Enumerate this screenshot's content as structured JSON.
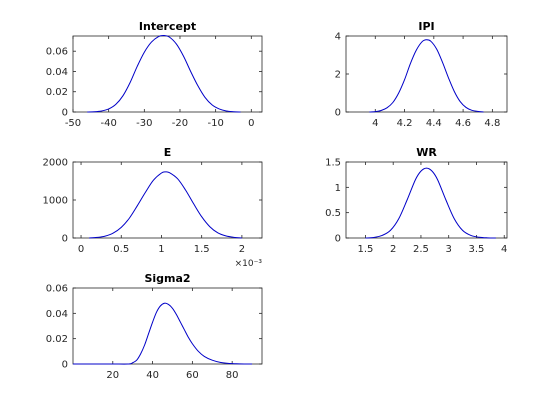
{
  "figure": {
    "background": "#ffffff",
    "axes_color": "#262626",
    "line_color": "#0000c8"
  },
  "chart_data": [
    {
      "type": "line",
      "id": "intercept",
      "title": "Intercept",
      "xlim": [
        -50,
        3
      ],
      "ylim": [
        0,
        0.075
      ],
      "x_ticks": [
        -50,
        -40,
        -30,
        -20,
        -10,
        0
      ],
      "x_tick_labels": [
        "-50",
        "-40",
        "-30",
        "-20",
        "-10",
        "0"
      ],
      "y_ticks": [
        0,
        0.02,
        0.04,
        0.06
      ],
      "y_tick_labels": [
        "0",
        "0.02",
        "0.04",
        "0.06"
      ],
      "x_exponent_label": "",
      "series": [
        {
          "color": "#0000c8",
          "x": [
            -46,
            -44,
            -42,
            -40,
            -38,
            -36,
            -34,
            -32,
            -30,
            -28,
            -26,
            -24.5,
            -23,
            -21,
            -19,
            -17,
            -15,
            -13,
            -11,
            -9,
            -7,
            -5,
            -3
          ],
          "y": [
            0,
            0.0002,
            0.001,
            0.003,
            0.0075,
            0.016,
            0.029,
            0.045,
            0.059,
            0.069,
            0.0745,
            0.0755,
            0.074,
            0.067,
            0.055,
            0.04,
            0.026,
            0.0145,
            0.007,
            0.003,
            0.001,
            0.0003,
            0
          ]
        }
      ]
    },
    {
      "type": "line",
      "id": "ipi",
      "title": "IPI",
      "xlim": [
        3.8,
        4.9
      ],
      "ylim": [
        0,
        4
      ],
      "x_ticks": [
        4,
        4.2,
        4.4,
        4.6,
        4.8
      ],
      "x_tick_labels": [
        "4",
        "4.2",
        "4.4",
        "4.6",
        "4.8"
      ],
      "y_ticks": [
        0,
        2,
        4
      ],
      "y_tick_labels": [
        "0",
        "2",
        "4"
      ],
      "x_exponent_label": "",
      "series": [
        {
          "color": "#0000c8",
          "x": [
            3.96,
            4.0,
            4.04,
            4.08,
            4.12,
            4.16,
            4.2,
            4.24,
            4.28,
            4.32,
            4.35,
            4.38,
            4.42,
            4.46,
            4.5,
            4.54,
            4.58,
            4.62,
            4.66,
            4.7,
            4.74
          ],
          "y": [
            0,
            0.02,
            0.08,
            0.22,
            0.5,
            1.0,
            1.7,
            2.55,
            3.25,
            3.7,
            3.8,
            3.72,
            3.3,
            2.6,
            1.8,
            1.08,
            0.55,
            0.24,
            0.09,
            0.03,
            0
          ]
        }
      ]
    },
    {
      "type": "line",
      "id": "e",
      "title": "E",
      "xlim": [
        -0.1,
        2.25
      ],
      "ylim": [
        0,
        2000
      ],
      "x_ticks": [
        0,
        0.5,
        1,
        1.5,
        2
      ],
      "x_tick_labels": [
        "0",
        "0.5",
        "1",
        "1.5",
        "2"
      ],
      "y_ticks": [
        0,
        1000,
        2000
      ],
      "y_tick_labels": [
        "0",
        "1000",
        "2000"
      ],
      "x_exponent_label": "×10⁻³",
      "series": [
        {
          "color": "#0000c8",
          "x": [
            0.1,
            0.2,
            0.3,
            0.4,
            0.5,
            0.6,
            0.7,
            0.8,
            0.9,
            1.0,
            1.05,
            1.1,
            1.2,
            1.3,
            1.4,
            1.5,
            1.6,
            1.7,
            1.8,
            1.9,
            2.0
          ],
          "y": [
            0,
            15,
            50,
            130,
            280,
            520,
            850,
            1200,
            1520,
            1710,
            1740,
            1720,
            1560,
            1260,
            900,
            560,
            300,
            135,
            55,
            18,
            0
          ]
        }
      ]
    },
    {
      "type": "line",
      "id": "wr",
      "title": "WR",
      "xlim": [
        1.15,
        4.05
      ],
      "ylim": [
        0,
        1.5
      ],
      "x_ticks": [
        1.5,
        2,
        2.5,
        3,
        3.5,
        4
      ],
      "x_tick_labels": [
        "1.5",
        "2",
        "2.5",
        "3",
        "3.5",
        "4"
      ],
      "y_ticks": [
        0,
        0.5,
        1,
        1.5
      ],
      "y_tick_labels": [
        "0",
        "0.5",
        "1",
        "1.5"
      ],
      "x_exponent_label": "",
      "series": [
        {
          "color": "#0000c8",
          "x": [
            1.5,
            1.65,
            1.8,
            1.95,
            2.1,
            2.25,
            2.4,
            2.5,
            2.6,
            2.7,
            2.8,
            2.95,
            3.1,
            3.25,
            3.4,
            3.55,
            3.7,
            3.85
          ],
          "y": [
            0,
            0.01,
            0.05,
            0.15,
            0.38,
            0.75,
            1.15,
            1.32,
            1.38,
            1.32,
            1.15,
            0.75,
            0.38,
            0.15,
            0.05,
            0.015,
            0.003,
            0
          ]
        }
      ]
    },
    {
      "type": "line",
      "id": "sigma2",
      "title": "Sigma2",
      "xlim": [
        0,
        95
      ],
      "ylim": [
        0,
        0.06
      ],
      "x_ticks": [
        20,
        40,
        60,
        80
      ],
      "x_tick_labels": [
        "20",
        "40",
        "60",
        "80"
      ],
      "y_ticks": [
        0,
        0.02,
        0.04,
        0.06
      ],
      "y_tick_labels": [
        "0",
        "0.02",
        "0.04",
        "0.06"
      ],
      "x_exponent_label": "",
      "series": [
        {
          "color": "#0000c8",
          "x": [
            0,
            10,
            20,
            28,
            30,
            32,
            34,
            36,
            38,
            40,
            42,
            44,
            46,
            48,
            50,
            52,
            54,
            56,
            58,
            60,
            63,
            66,
            70,
            74,
            78,
            82,
            86,
            90
          ],
          "y": [
            0,
            0,
            0,
            0,
            0.001,
            0.003,
            0.008,
            0.015,
            0.024,
            0.033,
            0.041,
            0.046,
            0.048,
            0.047,
            0.044,
            0.039,
            0.033,
            0.027,
            0.021,
            0.016,
            0.01,
            0.006,
            0.003,
            0.0013,
            0.0005,
            0.0002,
            5e-05,
            0
          ]
        }
      ]
    }
  ]
}
